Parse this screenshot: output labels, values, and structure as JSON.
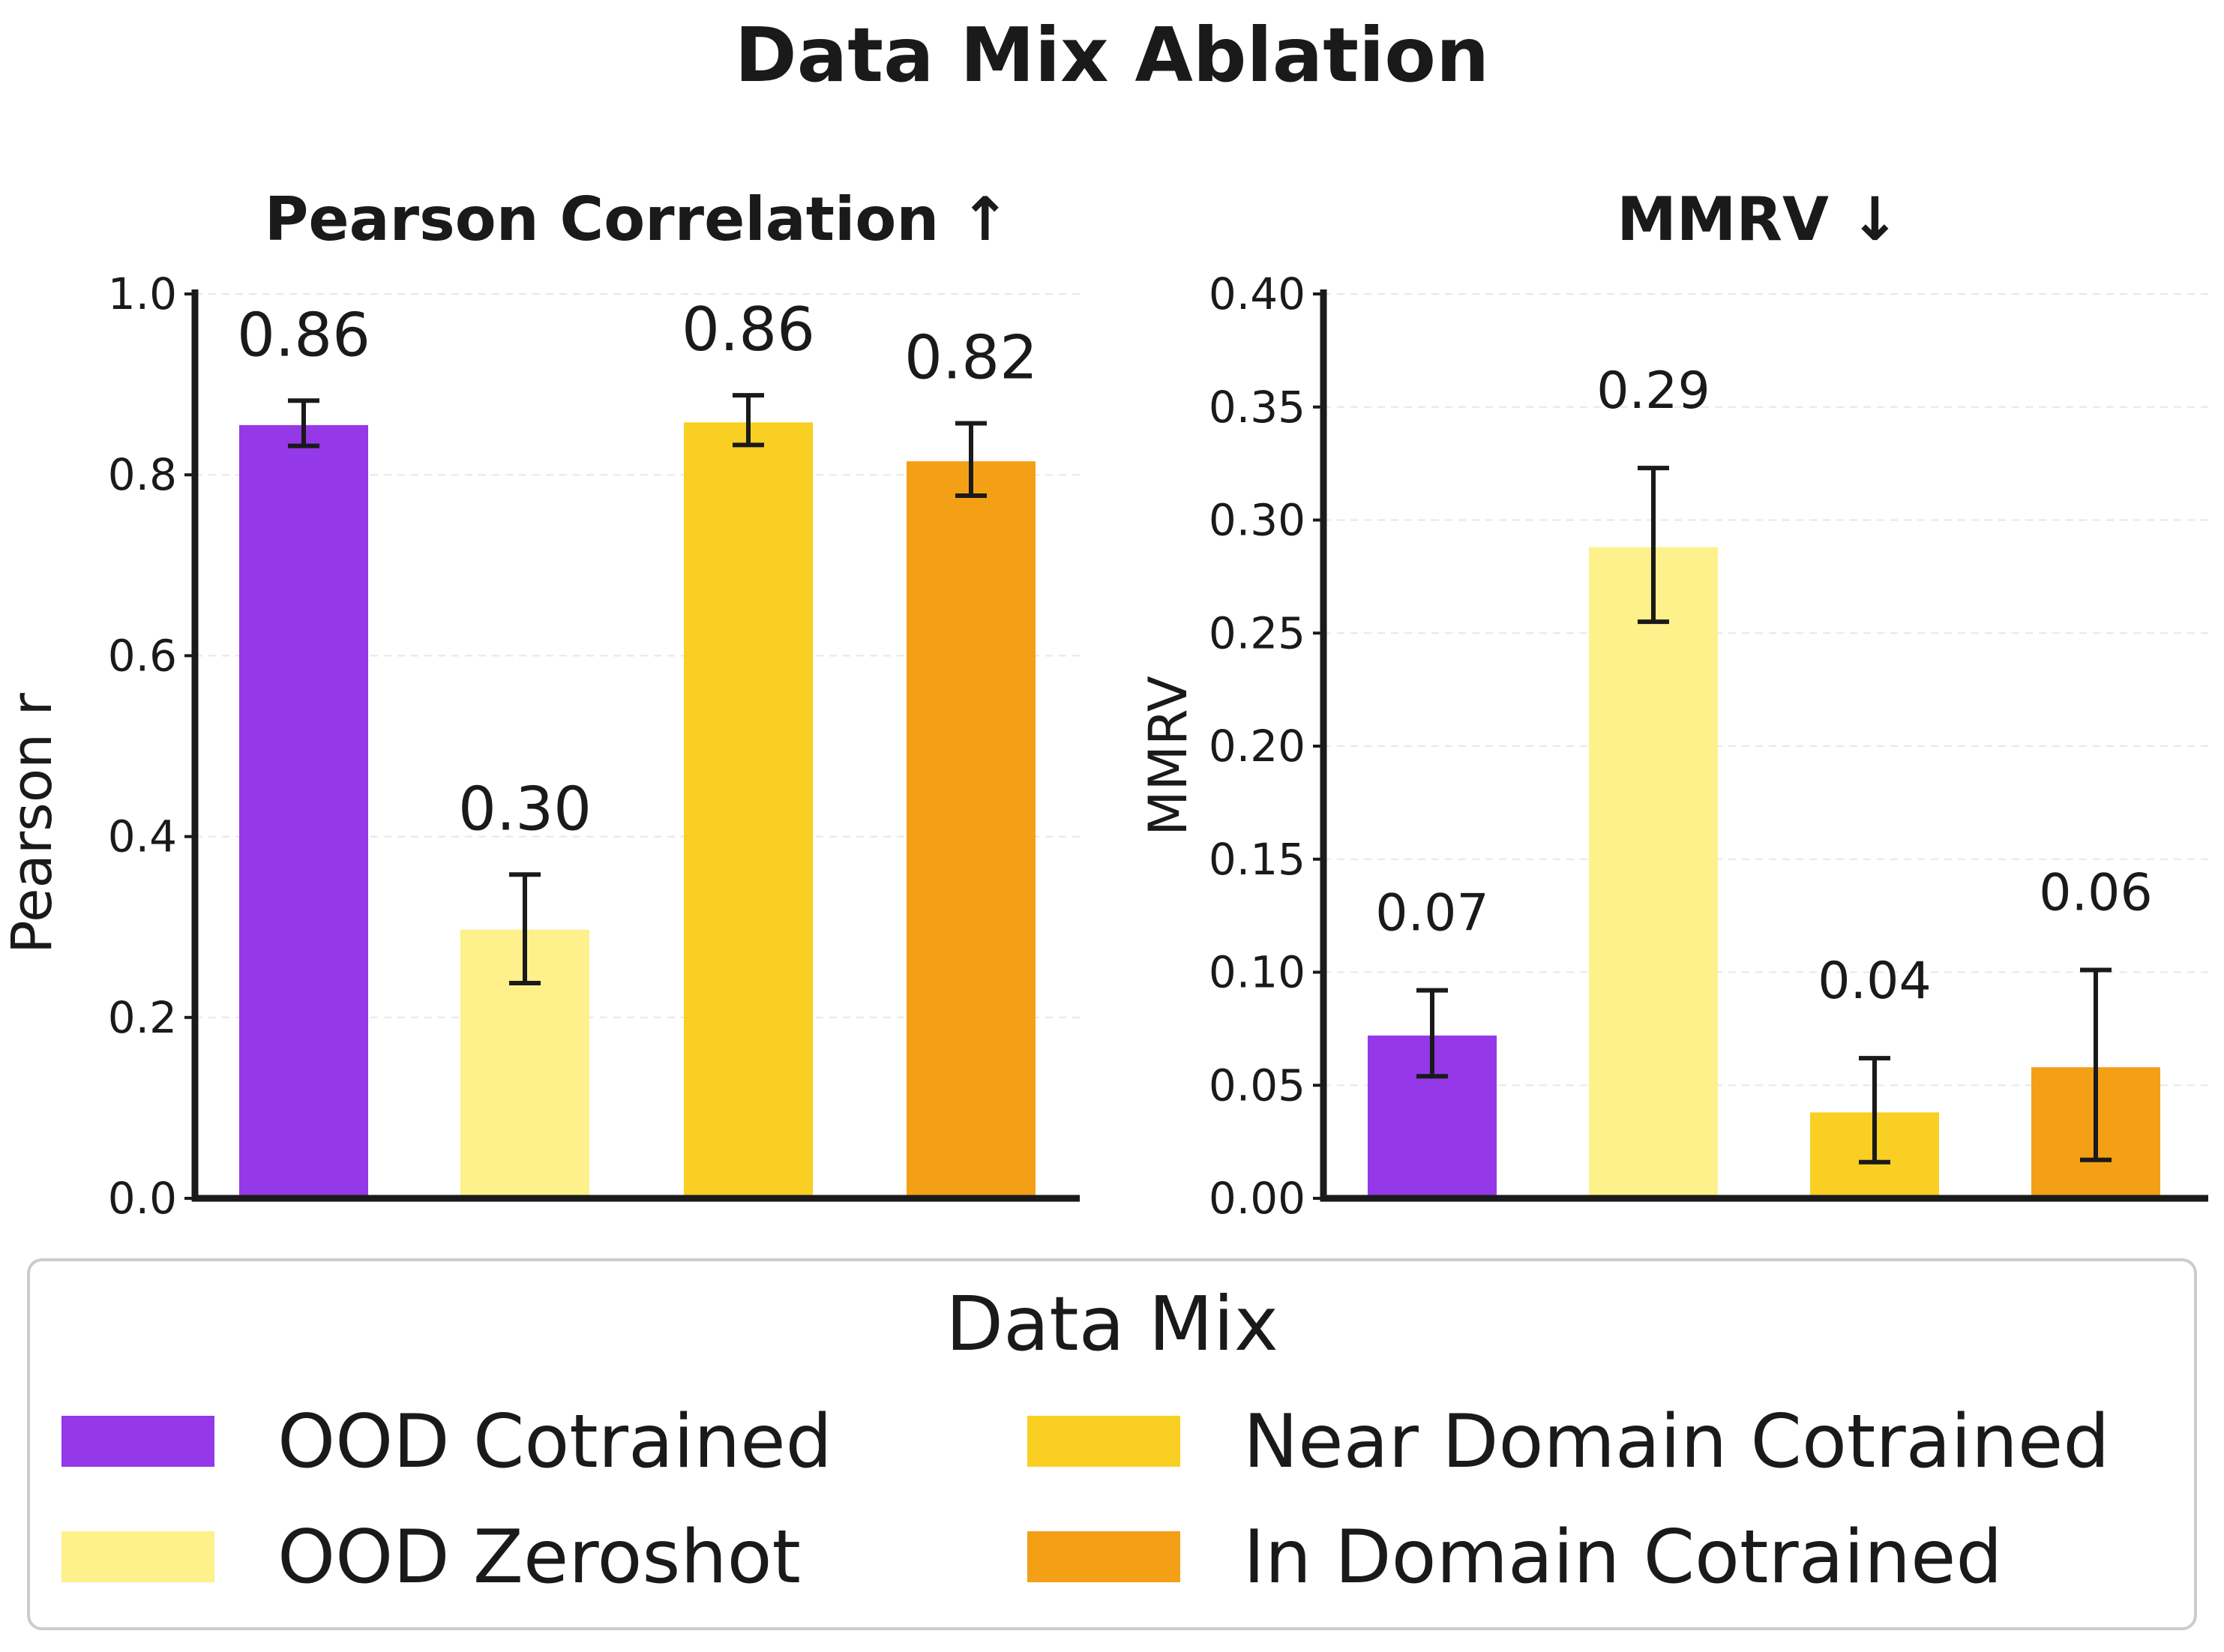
{
  "figure_title": "Data Mix Ablation",
  "legend": {
    "title": "Data Mix",
    "entries": [
      {
        "label": "OOD Cotrained",
        "color": "#9438e8"
      },
      {
        "label": "OOD Zeroshot",
        "color": "#fef08b"
      },
      {
        "label": "Near Domain Cotrained",
        "color": "#f9cf24"
      },
      {
        "label": "In Domain Cotrained",
        "color": "#f4a017"
      }
    ]
  },
  "chart_data": [
    {
      "type": "bar",
      "title": "Pearson Correlation ↑",
      "xlabel": "",
      "ylabel": "Pearson r",
      "ylim": [
        0,
        1.0
      ],
      "yticks": [
        0.0,
        0.2,
        0.4,
        0.6,
        0.8,
        1.0
      ],
      "ytick_labels": [
        "0.0",
        "0.2",
        "0.4",
        "0.6",
        "0.8",
        "1.0"
      ],
      "categories": [
        "OOD Cotrained",
        "OOD Zeroshot",
        "Near Domain Cotrained",
        "In Domain Cotrained"
      ],
      "colors": [
        "#9438e8",
        "#fef08b",
        "#f9cf24",
        "#f4a017"
      ],
      "values": [
        0.855,
        0.297,
        0.858,
        0.815
      ],
      "error_low": [
        0.832,
        0.238,
        0.833,
        0.777
      ],
      "error_high": [
        0.882,
        0.358,
        0.888,
        0.857
      ],
      "value_labels": [
        "0.86",
        "0.30",
        "0.86",
        "0.82"
      ],
      "grid": "horizontal dashed"
    },
    {
      "type": "bar",
      "title": "MMRV ↓",
      "xlabel": "",
      "ylabel": "MMRV",
      "ylim": [
        0,
        0.4
      ],
      "yticks": [
        0.0,
        0.05,
        0.1,
        0.15,
        0.2,
        0.25,
        0.3,
        0.35,
        0.4
      ],
      "ytick_labels": [
        "0.00",
        "0.05",
        "0.10",
        "0.15",
        "0.20",
        "0.25",
        "0.30",
        "0.35",
        "0.40"
      ],
      "categories": [
        "OOD Cotrained",
        "OOD Zeroshot",
        "Near Domain Cotrained",
        "In Domain Cotrained"
      ],
      "colors": [
        "#9438e8",
        "#fef08b",
        "#f9cf24",
        "#f4a017"
      ],
      "values": [
        0.072,
        0.288,
        0.038,
        0.058
      ],
      "error_low": [
        0.054,
        0.255,
        0.016,
        0.017
      ],
      "error_high": [
        0.092,
        0.323,
        0.062,
        0.101
      ],
      "value_labels": [
        "0.07",
        "0.29",
        "0.04",
        "0.06"
      ],
      "grid": "horizontal dashed"
    }
  ]
}
